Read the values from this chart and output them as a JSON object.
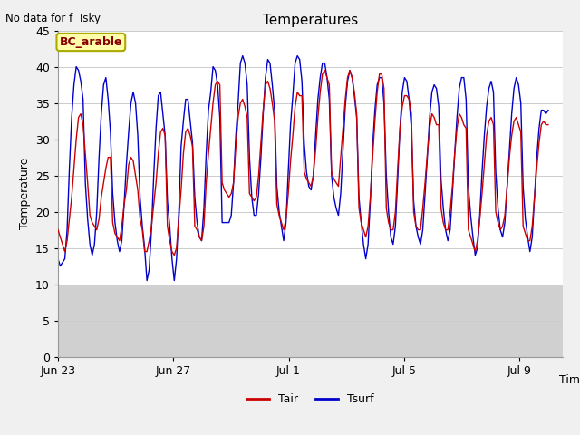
{
  "title": "Temperatures",
  "xlabel": "Time",
  "ylabel": "Temperature",
  "top_left_text": "No data for f_Tsky",
  "box_label": "BC_arable",
  "ylim": [
    0,
    45
  ],
  "yticks": [
    0,
    5,
    10,
    15,
    20,
    25,
    30,
    35,
    40,
    45
  ],
  "xtick_labels": [
    "Jun 23",
    "Jun 27",
    "Jul 1",
    "Jul 5",
    "Jul 9"
  ],
  "xtick_positions": [
    0,
    4,
    8,
    12,
    16
  ],
  "xlim": [
    0,
    17.5
  ],
  "legend_entries": [
    "Tair",
    "Tsurf"
  ],
  "tair_color": "#cc0000",
  "tsurf_color": "#0000cc",
  "fig_bg_color": "#f0f0f0",
  "plot_bg_upper": "#ffffff",
  "plot_bg_lower": "#d8d8d8",
  "white_band_bottom": 10,
  "tair_data": [
    17.5,
    16.5,
    15.5,
    14.5,
    16.0,
    19.0,
    22.0,
    26.0,
    30.0,
    33.0,
    33.5,
    32.0,
    28.0,
    24.0,
    19.5,
    18.5,
    18.0,
    17.5,
    19.0,
    22.0,
    24.0,
    26.0,
    27.5,
    27.5,
    18.5,
    17.0,
    16.5,
    16.0,
    18.0,
    21.0,
    23.0,
    26.5,
    27.5,
    27.0,
    25.0,
    23.0,
    19.0,
    17.5,
    14.5,
    14.5,
    16.0,
    18.0,
    21.0,
    24.0,
    28.0,
    31.0,
    31.5,
    30.5,
    18.0,
    16.0,
    14.5,
    14.0,
    15.0,
    19.0,
    23.0,
    28.0,
    31.0,
    31.5,
    30.5,
    29.0,
    18.0,
    17.5,
    16.5,
    16.0,
    18.0,
    24.0,
    28.0,
    31.5,
    35.0,
    37.5,
    38.0,
    37.5,
    24.0,
    23.0,
    22.5,
    22.0,
    22.5,
    24.0,
    29.0,
    33.0,
    35.0,
    35.5,
    34.5,
    33.0,
    22.5,
    22.0,
    21.5,
    22.0,
    25.0,
    29.5,
    34.0,
    37.5,
    38.0,
    37.0,
    35.0,
    32.5,
    21.0,
    19.5,
    18.5,
    17.5,
    19.0,
    22.5,
    27.0,
    30.5,
    34.5,
    36.5,
    36.0,
    36.0,
    25.5,
    24.5,
    24.0,
    23.5,
    25.0,
    28.5,
    33.0,
    36.5,
    39.0,
    39.5,
    38.5,
    37.5,
    25.5,
    24.5,
    24.0,
    23.5,
    27.5,
    31.5,
    35.5,
    38.5,
    39.5,
    38.5,
    36.5,
    33.5,
    20.5,
    18.5,
    17.5,
    16.5,
    18.0,
    22.0,
    27.5,
    32.5,
    36.5,
    39.0,
    39.0,
    37.0,
    20.5,
    18.5,
    17.5,
    17.5,
    20.0,
    26.0,
    31.5,
    34.5,
    36.0,
    36.0,
    35.5,
    33.5,
    20.0,
    18.0,
    17.5,
    17.5,
    20.5,
    24.0,
    28.0,
    31.5,
    33.5,
    33.0,
    32.0,
    32.0,
    20.5,
    18.5,
    17.5,
    17.5,
    20.0,
    23.5,
    28.0,
    31.5,
    33.5,
    33.0,
    32.0,
    31.5,
    17.5,
    16.5,
    15.5,
    14.5,
    16.0,
    19.0,
    22.5,
    26.5,
    30.5,
    32.5,
    33.0,
    32.0,
    20.0,
    18.5,
    17.5,
    18.0,
    19.5,
    23.5,
    27.5,
    30.5,
    32.5,
    33.0,
    32.0,
    31.0,
    18.0,
    17.0,
    16.0,
    16.0,
    18.0,
    22.0,
    26.0,
    29.5,
    32.0,
    32.5,
    32.0,
    32.0
  ],
  "tsurf_data": [
    13.5,
    12.5,
    13.0,
    13.5,
    17.5,
    26.0,
    33.0,
    37.5,
    40.0,
    39.5,
    38.0,
    35.5,
    24.0,
    19.0,
    15.5,
    14.0,
    15.5,
    20.0,
    27.5,
    33.5,
    37.5,
    38.5,
    35.5,
    31.0,
    22.5,
    18.5,
    16.0,
    14.5,
    16.0,
    21.0,
    26.5,
    31.0,
    35.0,
    36.5,
    35.0,
    30.5,
    22.0,
    18.0,
    15.0,
    10.5,
    12.0,
    17.5,
    25.0,
    31.5,
    36.0,
    36.5,
    33.5,
    30.5,
    21.5,
    18.0,
    13.5,
    10.5,
    13.5,
    20.0,
    29.0,
    32.5,
    35.5,
    35.5,
    32.5,
    29.5,
    22.0,
    18.5,
    16.5,
    16.0,
    20.5,
    28.0,
    34.0,
    36.5,
    40.0,
    39.5,
    37.5,
    33.0,
    18.5,
    18.5,
    18.5,
    18.5,
    19.5,
    24.0,
    30.5,
    35.0,
    40.5,
    41.5,
    40.5,
    37.5,
    27.5,
    22.0,
    19.5,
    19.5,
    22.5,
    27.5,
    33.5,
    38.5,
    41.0,
    40.5,
    37.5,
    34.0,
    23.5,
    20.0,
    18.0,
    16.0,
    18.5,
    25.5,
    32.0,
    36.0,
    40.5,
    41.5,
    41.0,
    38.0,
    29.5,
    25.5,
    23.5,
    23.0,
    25.0,
    30.5,
    35.5,
    38.5,
    40.5,
    40.5,
    38.5,
    35.5,
    25.0,
    22.0,
    20.5,
    19.5,
    22.5,
    28.5,
    34.5,
    38.0,
    39.5,
    38.5,
    36.0,
    33.0,
    22.0,
    18.5,
    15.5,
    13.5,
    15.5,
    21.5,
    29.0,
    34.0,
    37.5,
    38.5,
    38.5,
    35.0,
    25.0,
    20.0,
    16.5,
    15.5,
    18.0,
    24.5,
    31.5,
    36.5,
    38.5,
    38.0,
    35.5,
    31.5,
    21.5,
    18.0,
    16.5,
    15.5,
    17.5,
    22.5,
    27.5,
    33.0,
    36.5,
    37.5,
    37.0,
    34.5,
    24.5,
    20.5,
    17.5,
    16.0,
    17.5,
    22.5,
    28.0,
    33.0,
    37.0,
    38.5,
    38.5,
    35.5,
    23.5,
    19.5,
    16.5,
    14.0,
    15.0,
    19.5,
    25.5,
    30.5,
    34.5,
    37.0,
    38.0,
    36.5,
    25.5,
    20.5,
    17.5,
    16.5,
    18.5,
    23.5,
    28.5,
    33.5,
    37.0,
    38.5,
    37.5,
    35.0,
    23.5,
    19.0,
    16.5,
    14.5,
    16.5,
    22.0,
    27.5,
    31.5,
    34.0,
    34.0,
    33.5,
    34.0
  ]
}
